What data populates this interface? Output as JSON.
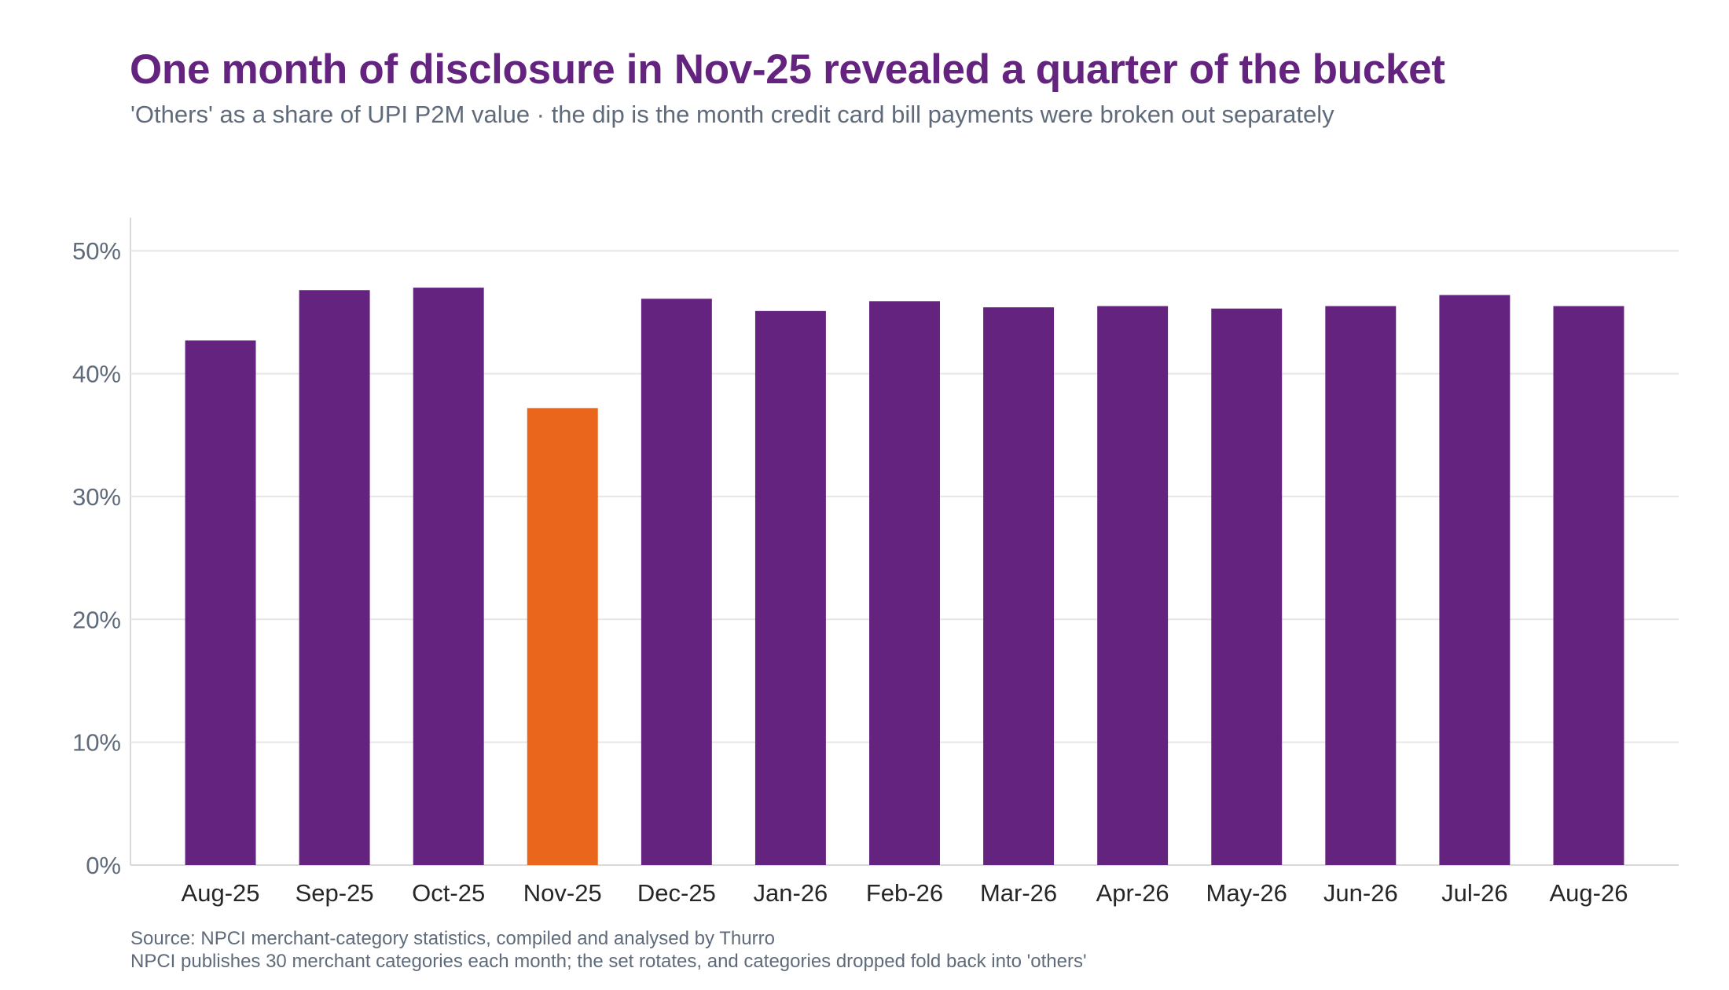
{
  "header": {
    "title": "One month of disclosure in Nov-25 revealed a quarter of the bucket",
    "subtitle": "'Others' as a share of UPI P2M value · the dip is the month credit card bill payments were broken out separately"
  },
  "footer": {
    "source": "Source: NPCI merchant-category statistics, compiled and analysed by Thurro",
    "note": "NPCI publishes 30 merchant categories each month; the set rotates, and categories dropped fold back into 'others'"
  },
  "colors": {
    "bar": "#64237e",
    "highlight": "#ea661d",
    "grid": "#e6e6e6",
    "axis": "#d9d9d9"
  },
  "chart_data": {
    "type": "bar",
    "title": "One month of disclosure in Nov-25 revealed a quarter of the bucket",
    "subtitle": "'Others' as a share of UPI P2M value · the dip is the month credit card bill payments were broken out separately",
    "xlabel": "",
    "ylabel": "",
    "categories": [
      "Aug-25",
      "Sep-25",
      "Oct-25",
      "Nov-25",
      "Dec-25",
      "Jan-26",
      "Feb-26",
      "Mar-26",
      "Apr-26",
      "May-26",
      "Jun-26",
      "Jul-26",
      "Aug-26"
    ],
    "values": [
      42.7,
      46.8,
      47.0,
      37.2,
      46.1,
      45.1,
      45.9,
      45.4,
      45.5,
      45.3,
      45.5,
      46.4,
      45.5
    ],
    "highlight_category": "Nov-25",
    "ylim": [
      0,
      52.7
    ],
    "yticks": [
      0,
      10,
      20,
      30,
      40,
      50
    ],
    "ytick_labels": [
      "0%",
      "10%",
      "20%",
      "30%",
      "40%",
      "50%"
    ],
    "grid": true,
    "legend": "none"
  }
}
